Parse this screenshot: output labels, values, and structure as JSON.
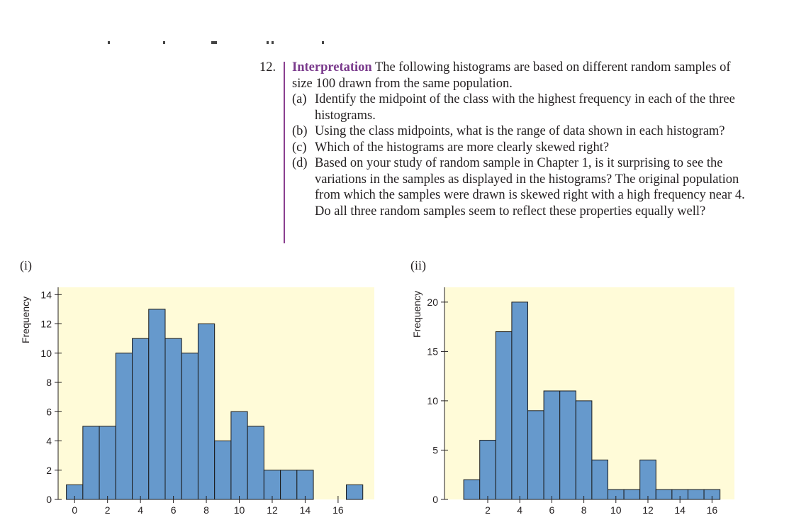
{
  "problem": {
    "number": "12.",
    "heading": "Interpretation",
    "intro": "The following histograms are based on different random samples of size 100 drawn from the same population.",
    "parts": [
      {
        "label": "(a)",
        "text": "Identify the midpoint of the class with the highest frequency in each of the three histograms."
      },
      {
        "label": "(b)",
        "text": "Using the class midpoints, what is the range of data shown in each histogram?"
      },
      {
        "label": "(c)",
        "text": "Which of the histograms are more clearly skewed right?"
      },
      {
        "label": "(d)",
        "text": "Based on your study of random sample in Chapter 1, is it surprising to see the variations in the samples as displayed in the histograms? The original population from which the samples were drawn is skewed right with a high frequency near 4. Do all three random samples seem to reflect these properties equally well?"
      }
    ]
  },
  "colors": {
    "bar_fill": "#6699cc",
    "bar_stroke": "#1a1a1a",
    "plot_bg": "#fffbd8",
    "accent": "#7a3a8c"
  },
  "chart_data": [
    {
      "panel": "(i)",
      "type": "bar",
      "ylabel": "Frequency",
      "xlim": [
        -1,
        18.2
      ],
      "ylim": [
        0,
        14.5
      ],
      "x_ticks": [
        0,
        2,
        4,
        6,
        8,
        10,
        12,
        14,
        16
      ],
      "y_ticks": [
        0,
        2,
        4,
        6,
        8,
        10,
        12,
        14
      ],
      "bin_width": 1,
      "bins": [
        0,
        1,
        2,
        3,
        4,
        5,
        6,
        7,
        8,
        9,
        10,
        11,
        12,
        13,
        14,
        15,
        16,
        17
      ],
      "values": [
        1,
        5,
        5,
        10,
        11,
        13,
        11,
        10,
        12,
        4,
        6,
        5,
        2,
        2,
        2,
        0,
        0,
        1
      ]
    },
    {
      "panel": "(ii)",
      "type": "bar",
      "ylabel": "Frequency",
      "xlim": [
        -0.7,
        17.4
      ],
      "ylim": [
        0,
        21.5
      ],
      "x_ticks": [
        2,
        4,
        6,
        8,
        10,
        12,
        14,
        16
      ],
      "y_ticks": [
        0,
        5,
        10,
        15,
        20
      ],
      "bin_width": 1,
      "bins": [
        1,
        2,
        3,
        4,
        5,
        6,
        7,
        8,
        9,
        10,
        11,
        12,
        13,
        14,
        15,
        16
      ],
      "values": [
        2,
        6,
        17,
        20,
        9,
        11,
        11,
        10,
        4,
        1,
        1,
        4,
        1,
        1,
        1,
        1
      ]
    }
  ]
}
